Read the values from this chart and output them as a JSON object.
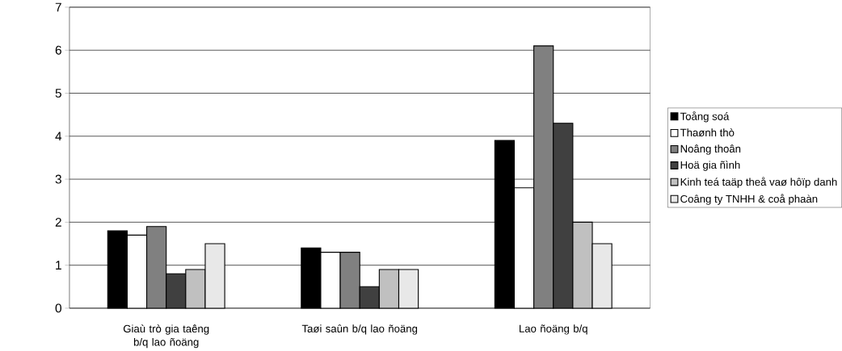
{
  "chart_data": {
    "type": "bar",
    "categories": [
      "Giaù trò gia taêng b/q lao ñoäng",
      "Taøi saûn b/q lao ñoäng",
      "Lao ñoäng b/q"
    ],
    "series": [
      {
        "name": "Toång soá",
        "color": "#000000",
        "values": [
          1.8,
          1.4,
          3.9
        ]
      },
      {
        "name": "Thaønh thò",
        "color": "#ffffff",
        "values": [
          1.7,
          1.3,
          2.8
        ]
      },
      {
        "name": "Noâng thoân",
        "color": "#808080",
        "values": [
          1.9,
          1.3,
          6.1
        ]
      },
      {
        "name": "Hoä gia ñình",
        "color": "#404040",
        "values": [
          0.8,
          0.5,
          4.3
        ]
      },
      {
        "name": "Kinh teá taäp theå vaø hôïp danh",
        "color": "#c0c0c0",
        "values": [
          0.9,
          0.9,
          2.0
        ]
      },
      {
        "name": "Coâng ty TNHH & coå phaàn",
        "color": "#e8e8e8",
        "values": [
          1.5,
          0.9,
          1.5
        ]
      }
    ],
    "ylim": [
      0,
      7
    ],
    "yticks": [
      0,
      1,
      2,
      3,
      4,
      5,
      6,
      7
    ],
    "grid": "y",
    "legend": "right"
  }
}
